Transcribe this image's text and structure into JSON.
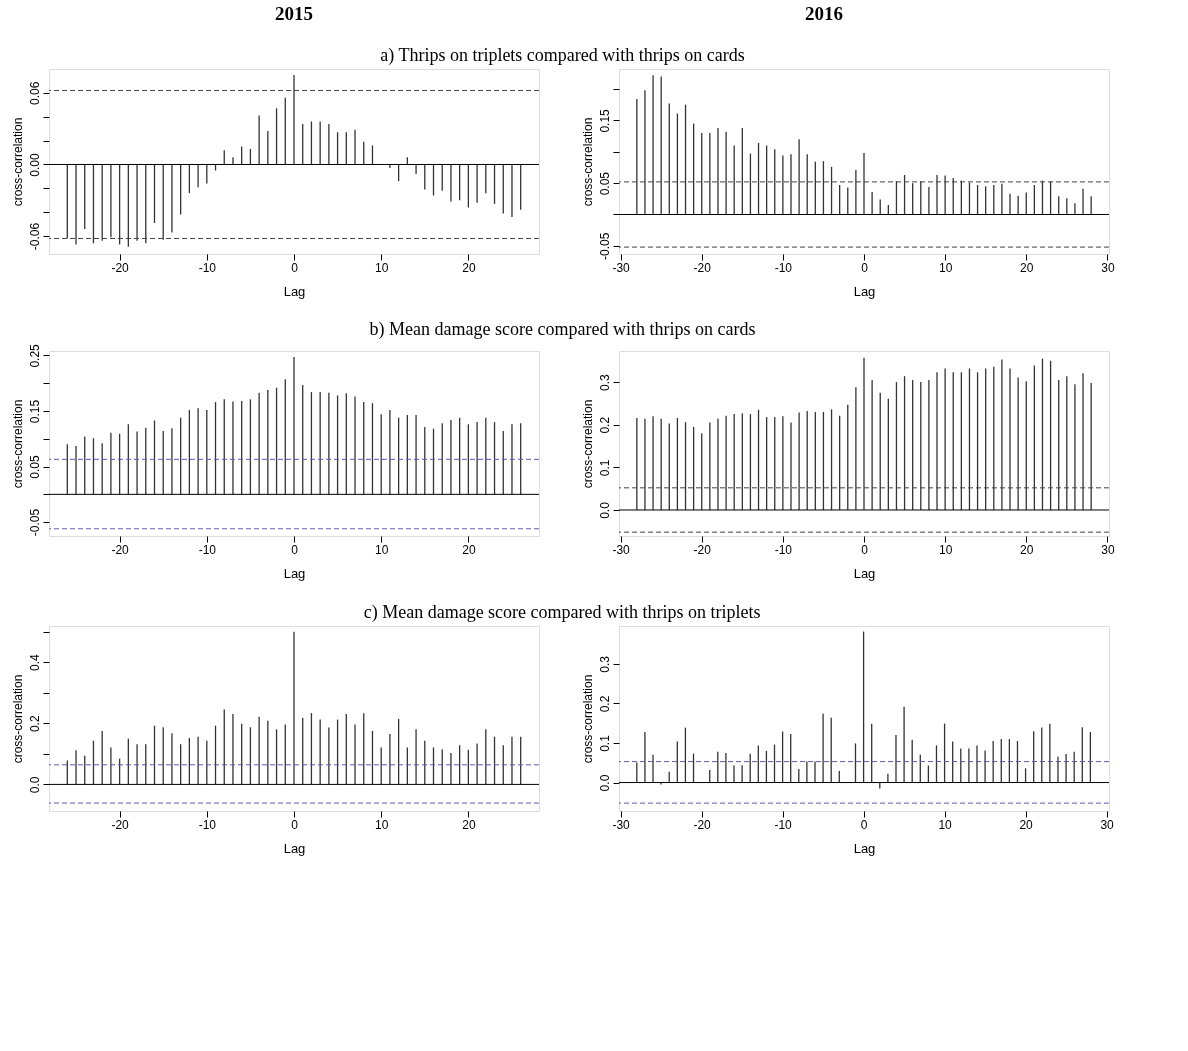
{
  "chart_data": [
    {
      "type": "bar",
      "annotations": [
        "2015"
      ],
      "title": "a) Thrips on triplets compared with thrips on cards",
      "xlabel": "Lag",
      "ylabel": "cross-correlation",
      "color": "#333333",
      "x": [
        -26,
        -25,
        -24,
        -23,
        -22,
        -21,
        -20,
        -19,
        -18,
        -17,
        -16,
        -15,
        -14,
        -13,
        -12,
        -11,
        -10,
        -9,
        -8,
        -7,
        -6,
        -5,
        -4,
        -3,
        -2,
        -1,
        0,
        1,
        2,
        3,
        4,
        5,
        6,
        7,
        8,
        9,
        10,
        11,
        12,
        13,
        14,
        15,
        16,
        17,
        18,
        19,
        20,
        21,
        22,
        23,
        24,
        25,
        26
      ],
      "values": [
        -0.062,
        -0.067,
        -0.054,
        -0.066,
        -0.064,
        -0.061,
        -0.067,
        -0.069,
        -0.064,
        -0.066,
        -0.049,
        -0.063,
        -0.057,
        -0.042,
        -0.024,
        -0.019,
        -0.016,
        -0.005,
        0.012,
        0.006,
        0.015,
        0.013,
        0.041,
        0.028,
        0.047,
        0.056,
        0.075,
        0.034,
        0.036,
        0.036,
        0.034,
        0.027,
        0.027,
        0.029,
        0.019,
        0.016,
        null,
        -0.003,
        -0.014,
        0.006,
        -0.008,
        -0.021,
        -0.026,
        -0.022,
        -0.031,
        -0.03,
        -0.036,
        -0.032,
        -0.024,
        -0.033,
        -0.041,
        -0.044,
        -0.038
      ],
      "xlim": [
        -28.1,
        28.1
      ],
      "xticks": [
        -20,
        -10,
        0,
        10,
        20
      ],
      "ylim": [
        -0.075,
        0.08
      ],
      "yticks": [
        -0.06,
        {
          "value": -0.04,
          "label": null
        },
        {
          "value": -0.02,
          "label": null
        },
        {
          "value": 0,
          "label": "0.00"
        },
        {
          "value": 0.02,
          "label": null
        },
        {
          "value": 0.04,
          "label": null
        },
        0.06
      ],
      "ref_lines": [
        {
          "axis": "y",
          "value": 0,
          "color": "#000000",
          "line_style": "solid"
        },
        {
          "axis": "y",
          "value": 0.062,
          "color": "#444444",
          "line_style": "dashed"
        },
        {
          "axis": "y",
          "value": -0.062,
          "color": "#444444",
          "line_style": "dashed"
        }
      ]
    },
    {
      "type": "bar",
      "annotations": [
        "2016"
      ],
      "xlabel": "Lag",
      "ylabel": "cross-correlation",
      "color": "#333333",
      "x": [
        -28,
        -27,
        -26,
        -25,
        -24,
        -23,
        -22,
        -21,
        -20,
        -19,
        -18,
        -17,
        -16,
        -15,
        -14,
        -13,
        -12,
        -11,
        -10,
        -9,
        -8,
        -7,
        -6,
        -5,
        -4,
        -3,
        -2,
        -1,
        0,
        1,
        2,
        3,
        4,
        5,
        6,
        7,
        8,
        9,
        10,
        11,
        12,
        13,
        14,
        15,
        16,
        17,
        18,
        19,
        20,
        21,
        22,
        23,
        24,
        25,
        26,
        27,
        28
      ],
      "values": [
        0.184,
        0.198,
        0.222,
        0.22,
        0.177,
        0.161,
        0.175,
        0.145,
        0.13,
        0.13,
        0.138,
        0.132,
        0.11,
        0.138,
        0.097,
        0.114,
        0.11,
        0.104,
        0.094,
        0.096,
        0.12,
        0.096,
        0.084,
        0.085,
        0.076,
        0.047,
        0.043,
        0.071,
        0.098,
        0.036,
        0.024,
        0.015,
        0.053,
        0.063,
        0.05,
        0.053,
        0.044,
        0.063,
        0.062,
        0.058,
        0.054,
        0.051,
        0.047,
        0.045,
        0.047,
        0.049,
        0.033,
        0.03,
        0.035,
        0.047,
        0.054,
        0.053,
        0.029,
        0.026,
        0.018,
        0.041,
        0.029
      ],
      "xlim": [
        -30.2,
        30.2
      ],
      "xticks": [
        -30,
        -20,
        -10,
        0,
        10,
        20,
        30
      ],
      "ylim": [
        -0.063,
        0.232
      ],
      "yticks": [
        -0.05,
        {
          "value": 0,
          "label": null
        },
        0.05,
        {
          "value": 0.1,
          "label": null
        },
        0.15,
        {
          "value": 0.2,
          "label": null
        }
      ],
      "ref_lines": [
        {
          "axis": "y",
          "value": 0,
          "color": "#000000",
          "line_style": "solid"
        },
        {
          "axis": "y",
          "value": 0.052,
          "color": "#444444",
          "line_style": "dashed"
        },
        {
          "axis": "y",
          "value": -0.052,
          "color": "#444444",
          "line_style": "dashed"
        }
      ]
    },
    {
      "type": "bar",
      "title": "b) Mean damage score compared with thrips on cards",
      "xlabel": "Lag",
      "ylabel": "cross-correlation",
      "color": "#333333",
      "x": [
        -26,
        -25,
        -24,
        -23,
        -22,
        -21,
        -20,
        -19,
        -18,
        -17,
        -16,
        -15,
        -14,
        -13,
        -12,
        -11,
        -10,
        -9,
        -8,
        -7,
        -6,
        -5,
        -4,
        -3,
        -2,
        -1,
        0,
        1,
        2,
        3,
        4,
        5,
        6,
        7,
        8,
        9,
        10,
        11,
        12,
        13,
        14,
        15,
        16,
        17,
        18,
        19,
        20,
        21,
        22,
        23,
        24,
        25,
        26
      ],
      "values": [
        0.09,
        0.087,
        0.104,
        0.101,
        0.092,
        0.111,
        0.109,
        0.126,
        0.113,
        0.12,
        0.133,
        0.114,
        0.119,
        0.138,
        0.152,
        0.155,
        0.152,
        0.166,
        0.171,
        0.167,
        0.168,
        0.171,
        0.183,
        0.188,
        0.192,
        0.207,
        0.247,
        0.197,
        0.184,
        0.184,
        0.183,
        0.178,
        0.182,
        0.176,
        0.166,
        0.164,
        0.144,
        0.152,
        0.138,
        0.143,
        0.143,
        0.121,
        0.118,
        0.128,
        0.134,
        0.138,
        0.126,
        0.13,
        0.138,
        0.13,
        0.114,
        0.126,
        0.128
      ],
      "xlim": [
        -28.1,
        28.1
      ],
      "xticks": [
        -20,
        -10,
        0,
        10,
        20
      ],
      "ylim": [
        -0.075,
        0.258
      ],
      "yticks": [
        -0.05,
        {
          "value": 0,
          "label": null
        },
        0.05,
        {
          "value": 0.1,
          "label": null
        },
        0.15,
        {
          "value": 0.2,
          "label": null
        },
        0.25
      ],
      "ref_lines": [
        {
          "axis": "y",
          "value": 0,
          "color": "#000000",
          "line_style": "solid"
        },
        {
          "axis": "y",
          "value": 0.063,
          "color": "#5a5ab4",
          "line_style": "dashed"
        },
        {
          "axis": "y",
          "value": -0.062,
          "color": "#5a5ab4",
          "line_style": "dashed"
        }
      ]
    },
    {
      "type": "bar",
      "xlabel": "Lag",
      "ylabel": "cross-correlation",
      "color": "#333333",
      "x": [
        -28,
        -27,
        -26,
        -25,
        -24,
        -23,
        -22,
        -21,
        -20,
        -19,
        -18,
        -17,
        -16,
        -15,
        -14,
        -13,
        -12,
        -11,
        -10,
        -9,
        -8,
        -7,
        -6,
        -5,
        -4,
        -3,
        -2,
        -1,
        0,
        1,
        2,
        3,
        4,
        5,
        6,
        7,
        8,
        9,
        10,
        11,
        12,
        13,
        14,
        15,
        16,
        17,
        18,
        19,
        20,
        21,
        22,
        23,
        24,
        25,
        26,
        27,
        28
      ],
      "values": [
        0.216,
        0.214,
        0.22,
        0.214,
        0.203,
        0.216,
        0.206,
        0.195,
        0.18,
        0.205,
        0.214,
        0.221,
        0.225,
        0.227,
        0.225,
        0.235,
        0.218,
        0.218,
        0.22,
        0.205,
        0.229,
        0.232,
        0.23,
        0.23,
        0.236,
        0.221,
        0.247,
        0.288,
        0.357,
        0.305,
        0.275,
        0.261,
        0.3,
        0.314,
        0.305,
        0.3,
        0.305,
        0.323,
        0.332,
        0.323,
        0.323,
        0.332,
        0.323,
        0.332,
        0.336,
        0.353,
        0.332,
        0.311,
        0.302,
        0.339,
        0.355,
        0.35,
        0.305,
        0.314,
        0.295,
        0.321,
        0.298
      ],
      "xlim": [
        -30.2,
        30.2
      ],
      "xticks": [
        -30,
        -20,
        -10,
        0,
        10,
        20,
        30
      ],
      "ylim": [
        -0.061,
        0.373
      ],
      "yticks": [
        {
          "value": 0,
          "label": "0.0"
        },
        0.1,
        0.2,
        0.3
      ],
      "ref_lines": [
        {
          "axis": "y",
          "value": 0,
          "color": "#000000",
          "line_style": "solid"
        },
        {
          "axis": "y",
          "value": 0.052,
          "color": "#444444",
          "line_style": "dashed"
        },
        {
          "axis": "y",
          "value": -0.052,
          "color": "#444444",
          "line_style": "dashed"
        }
      ]
    },
    {
      "type": "bar",
      "title": "c) Mean damage score compared with thrips on triplets",
      "xlabel": "Lag",
      "ylabel": "cross-correlation",
      "color": "#333333",
      "x": [
        -26,
        -25,
        -24,
        -23,
        -22,
        -21,
        -20,
        -19,
        -18,
        -17,
        -16,
        -15,
        -14,
        -13,
        -12,
        -11,
        -10,
        -9,
        -8,
        -7,
        -6,
        -5,
        -4,
        -3,
        -2,
        -1,
        0,
        1,
        2,
        3,
        4,
        5,
        6,
        7,
        8,
        9,
        10,
        11,
        12,
        13,
        14,
        15,
        16,
        17,
        18,
        19,
        20,
        21,
        22,
        23,
        24,
        25,
        26
      ],
      "values": [
        0.078,
        0.112,
        0.094,
        0.143,
        0.175,
        0.121,
        0.084,
        0.149,
        0.131,
        0.131,
        0.192,
        0.187,
        0.167,
        0.131,
        0.152,
        0.156,
        0.143,
        0.192,
        0.245,
        0.23,
        0.198,
        0.187,
        0.221,
        0.208,
        0.18,
        0.196,
        0.499,
        0.218,
        0.233,
        0.212,
        0.186,
        0.212,
        0.23,
        0.196,
        0.233,
        0.175,
        0.121,
        0.165,
        0.214,
        0.121,
        0.18,
        0.143,
        0.121,
        0.115,
        0.103,
        0.128,
        0.113,
        0.134,
        0.18,
        0.156,
        0.128,
        0.156,
        0.156
      ],
      "xlim": [
        -28.1,
        28.1
      ],
      "xticks": [
        -20,
        -10,
        0,
        10,
        20
      ],
      "ylim": [
        -0.087,
        0.518
      ],
      "yticks": [
        {
          "value": 0,
          "label": "0.0"
        },
        {
          "value": 0.1,
          "label": null
        },
        0.2,
        {
          "value": 0.3,
          "label": null
        },
        0.4,
        {
          "value": 0.5,
          "label": null
        }
      ],
      "ref_lines": [
        {
          "axis": "y",
          "value": 0,
          "color": "#000000",
          "line_style": "solid"
        },
        {
          "axis": "y",
          "value": 0.064,
          "color": "#5a5ab4",
          "line_style": "dashed"
        },
        {
          "axis": "y",
          "value": -0.061,
          "color": "#5a5ab4",
          "line_style": "dashed"
        }
      ]
    },
    {
      "type": "bar",
      "xlabel": "Lag",
      "ylabel": "cross-correlation",
      "color": "#333333",
      "x": [
        -28,
        -27,
        -26,
        -25,
        -24,
        -23,
        -22,
        -21,
        -20,
        -19,
        -18,
        -17,
        -16,
        -15,
        -14,
        -13,
        -12,
        -11,
        -10,
        -9,
        -8,
        -7,
        -6,
        -5,
        -4,
        -3,
        -2,
        -1,
        0,
        1,
        2,
        3,
        4,
        5,
        6,
        7,
        8,
        9,
        10,
        11,
        12,
        13,
        14,
        15,
        16,
        17,
        18,
        19,
        20,
        21,
        22,
        23,
        24,
        25,
        26,
        27,
        28
      ],
      "values": [
        0.051,
        0.128,
        0.07,
        -0.005,
        0.027,
        0.104,
        0.139,
        0.073,
        null,
        0.032,
        0.078,
        0.075,
        0.043,
        0.044,
        0.073,
        0.094,
        0.08,
        0.096,
        0.129,
        0.123,
        0.034,
        0.053,
        0.053,
        0.174,
        0.164,
        0.029,
        null,
        0.099,
        0.382,
        0.149,
        -0.015,
        0.022,
        0.12,
        0.192,
        0.108,
        0.07,
        0.043,
        0.094,
        0.149,
        0.104,
        0.086,
        0.086,
        0.094,
        0.081,
        0.105,
        0.11,
        0.11,
        0.105,
        0.036,
        0.13,
        0.139,
        0.149,
        0.065,
        0.072,
        0.078,
        0.14,
        0.128
      ],
      "xlim": [
        -30.2,
        30.3
      ],
      "xticks": [
        -30,
        -20,
        -10,
        0,
        10,
        20,
        30
      ],
      "ylim": [
        -0.072,
        0.396
      ],
      "yticks": [
        {
          "value": 0,
          "label": "0.0"
        },
        0.1,
        0.2,
        0.3
      ],
      "ref_lines": [
        {
          "axis": "y",
          "value": 0,
          "color": "#000000",
          "line_style": "solid"
        },
        {
          "axis": "y",
          "value": 0.053,
          "color": "#5a5ab4",
          "line_style": "dashed"
        },
        {
          "axis": "y",
          "value": -0.052,
          "color": "#5a5ab4",
          "line_style": "dashed"
        }
      ]
    }
  ]
}
